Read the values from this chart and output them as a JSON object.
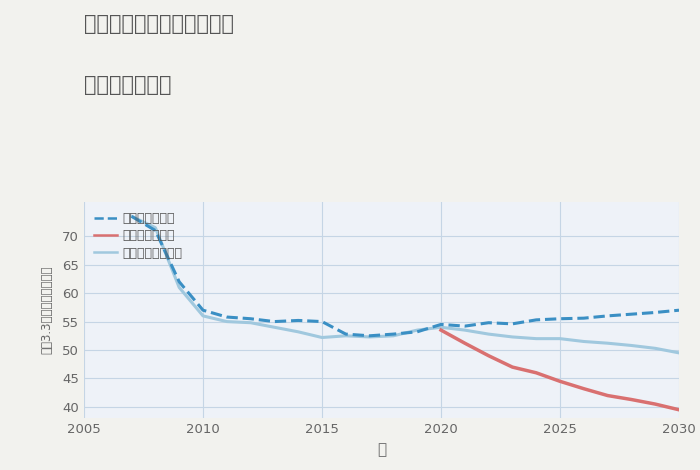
{
  "title_line1": "奈良県奈良市学園赤松町の",
  "title_line2": "土地の価格推移",
  "xlabel": "年",
  "ylabel": "坪（3.3㎡）単価（万円）",
  "background_color": "#f2f2ee",
  "plot_background": "#eef2f8",
  "grid_color": "#c5d5e5",
  "ylim": [
    38,
    76
  ],
  "xlim": [
    2005,
    2030
  ],
  "yticks": [
    40,
    45,
    50,
    55,
    60,
    65,
    70
  ],
  "xticks": [
    2005,
    2010,
    2015,
    2020,
    2025,
    2030
  ],
  "good_scenario": {
    "label": "グッドシナリオ",
    "color": "#3a8fc4",
    "x": [
      2007,
      2008,
      2009,
      2010,
      2011,
      2012,
      2013,
      2014,
      2015,
      2016,
      2017,
      2018,
      2019,
      2020,
      2021,
      2022,
      2023,
      2024,
      2025,
      2026,
      2027,
      2028,
      2029,
      2030
    ],
    "y": [
      73.5,
      71.0,
      62.0,
      57.0,
      55.8,
      55.5,
      55.0,
      55.2,
      55.0,
      52.8,
      52.5,
      52.8,
      53.2,
      54.5,
      54.2,
      54.8,
      54.6,
      55.3,
      55.5,
      55.6,
      56.0,
      56.3,
      56.6,
      57.0
    ],
    "linewidth": 2.2,
    "linestyle": "--"
  },
  "bad_scenario": {
    "label": "バッドシナリオ",
    "color": "#d97070",
    "x": [
      2020,
      2021,
      2022,
      2023,
      2024,
      2025,
      2026,
      2027,
      2028,
      2029,
      2030
    ],
    "y": [
      53.5,
      51.2,
      49.0,
      47.0,
      46.0,
      44.5,
      43.2,
      42.0,
      41.3,
      40.5,
      39.5
    ],
    "linewidth": 2.5,
    "linestyle": "-"
  },
  "normal_scenario": {
    "label": "ノーマルシナリオ",
    "color": "#a0c8de",
    "x": [
      2007,
      2008,
      2009,
      2010,
      2011,
      2012,
      2013,
      2014,
      2015,
      2016,
      2017,
      2018,
      2019,
      2020,
      2021,
      2022,
      2023,
      2024,
      2025,
      2026,
      2027,
      2028,
      2029,
      2030
    ],
    "y": [
      73.5,
      71.5,
      61.0,
      56.0,
      55.0,
      54.8,
      54.0,
      53.2,
      52.2,
      52.5,
      52.3,
      52.5,
      53.5,
      54.0,
      53.5,
      52.8,
      52.3,
      52.0,
      52.0,
      51.5,
      51.2,
      50.8,
      50.3,
      49.5
    ],
    "linewidth": 2.2,
    "linestyle": "-"
  }
}
